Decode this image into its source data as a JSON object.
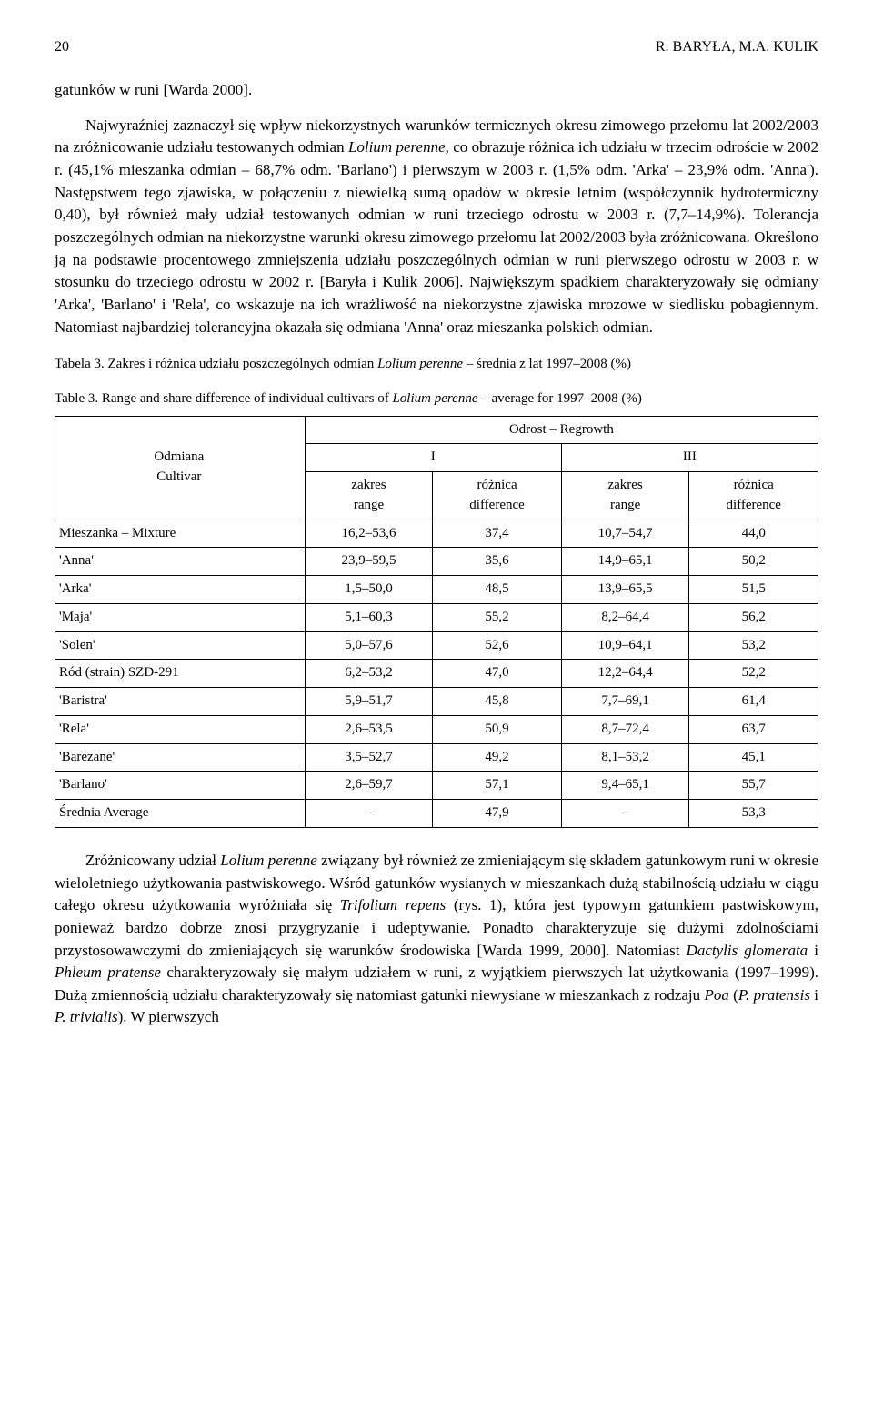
{
  "header": {
    "page_number": "20",
    "authors": "R. BARYŁA, M.A. KULIK"
  },
  "body": {
    "p1": "gatunków w runi [Warda 2000].",
    "p2_a": "Najwyraźniej zaznaczył się wpływ niekorzystnych warunków termicznych okresu zimowego przełomu lat 2002/2003 na zróżnicowanie udziału testowanych odmian ",
    "p2_b": "Lolium perenne",
    "p2_c": ", co obrazuje różnica ich udziału w trzecim odroście w 2002 r. (45,1% mieszanka odmian – 68,7% odm. 'Barlano') i pierwszym w 2003 r. (1,5% odm. 'Arka' – 23,9% odm. 'Anna'). Następstwem tego zjawiska, w połączeniu z niewielką sumą opadów w okresie letnim (współczynnik hydrotermiczny 0,40), był również mały udział testowanych odmian w runi trzeciego odrostu w 2003 r. (7,7–14,9%). Tolerancja poszczególnych odmian na niekorzystne warunki okresu zimowego przełomu lat 2002/2003 była zróżnicowana. Określono ją na podstawie procentowego zmniejszenia udziału poszczególnych odmian w runi pierwszego odrostu w 2003 r. w stosunku do trzeciego odrostu w 2002 r. [Baryła i Kulik 2006]. Największym spadkiem charakteryzowały się odmiany 'Arka', 'Barlano' i 'Rela', co wskazuje na ich wrażliwość na niekorzystne zjawiska mrozowe w siedlisku pobagiennym. Natomiast najbardziej tolerancyjna okazała się odmiana 'Anna' oraz mieszanka polskich odmian.",
    "p3_a": "Zróżnicowany udział ",
    "p3_b": "Lolium perenne",
    "p3_c": " związany był również ze zmieniającym się składem gatunkowym runi w okresie wieloletniego użytkowania pastwiskowego. Wśród gatunków wysianych w mieszankach dużą stabilnością udziału w ciągu całego okresu użytkowania wyróżniała się ",
    "p3_d": "Trifolium repens",
    "p3_e": " (rys. 1), która jest typowym gatunkiem pastwiskowym, ponieważ bardzo dobrze znosi przygryzanie i udeptywanie. Ponadto charakteryzuje się dużymi zdolnościami przystosowawczymi do zmieniających się warunków środowiska [Warda 1999, 2000]. Natomiast ",
    "p3_f": "Dactylis glomerata",
    "p3_g": " i ",
    "p3_h": "Phleum pratense",
    "p3_i": " charakteryzowały się małym udziałem w runi, z wyjątkiem pierwszych lat użytkowania (1997–1999). Dużą zmiennością udziału charakteryzowały się natomiast gatunki niewysiane w mieszankach z rodzaju ",
    "p3_j": "Poa",
    "p3_k": " (",
    "p3_l": "P. pratensis",
    "p3_m": " i ",
    "p3_n": "P. trivialis",
    "p3_o": "). W pierwszych"
  },
  "table3": {
    "caption_pl_a": "Tabela 3. Zakres i różnica udziału poszczególnych odmian ",
    "caption_pl_b": "Lolium perenne",
    "caption_pl_c": " – średnia z lat 1997–2008 (%)",
    "caption_en_a": "Table 3. Range and share difference of individual cultivars of ",
    "caption_en_b": "Lolium perenne",
    "caption_en_c": " – average for 1997–2008 (%)",
    "head": {
      "cultivar_pl": "Odmiana",
      "cultivar_en": "Cultivar",
      "regrowth": "Odrost – Regrowth",
      "col_I": "I",
      "col_III": "III",
      "range_pl": "zakres",
      "range_en": "range",
      "diff_pl": "różnica",
      "diff_en": "difference"
    },
    "rows": [
      {
        "name": "Mieszanka – Mixture",
        "r1": "16,2–53,6",
        "d1": "37,4",
        "r3": "10,7–54,7",
        "d3": "44,0"
      },
      {
        "name": "'Anna'",
        "r1": "23,9–59,5",
        "d1": "35,6",
        "r3": "14,9–65,1",
        "d3": "50,2"
      },
      {
        "name": "'Arka'",
        "r1": "1,5–50,0",
        "d1": "48,5",
        "r3": "13,9–65,5",
        "d3": "51,5"
      },
      {
        "name": "'Maja'",
        "r1": "5,1–60,3",
        "d1": "55,2",
        "r3": "8,2–64,4",
        "d3": "56,2"
      },
      {
        "name": "'Solen'",
        "r1": "5,0–57,6",
        "d1": "52,6",
        "r3": "10,9–64,1",
        "d3": "53,2"
      },
      {
        "name": "Ród (strain) SZD-291",
        "r1": "6,2–53,2",
        "d1": "47,0",
        "r3": "12,2–64,4",
        "d3": "52,2"
      },
      {
        "name": "'Baristra'",
        "r1": "5,9–51,7",
        "d1": "45,8",
        "r3": "7,7–69,1",
        "d3": "61,4"
      },
      {
        "name": "'Rela'",
        "r1": "2,6–53,5",
        "d1": "50,9",
        "r3": "8,7–72,4",
        "d3": "63,7"
      },
      {
        "name": "'Barezane'",
        "r1": "3,5–52,7",
        "d1": "49,2",
        "r3": "8,1–53,2",
        "d3": "45,1"
      },
      {
        "name": "'Barlano'",
        "r1": "2,6–59,7",
        "d1": "57,1",
        "r3": "9,4–65,1",
        "d3": "55,7"
      },
      {
        "name": "Średnia Average",
        "r1": "–",
        "d1": "47,9",
        "r3": "–",
        "d3": "53,3"
      }
    ]
  }
}
